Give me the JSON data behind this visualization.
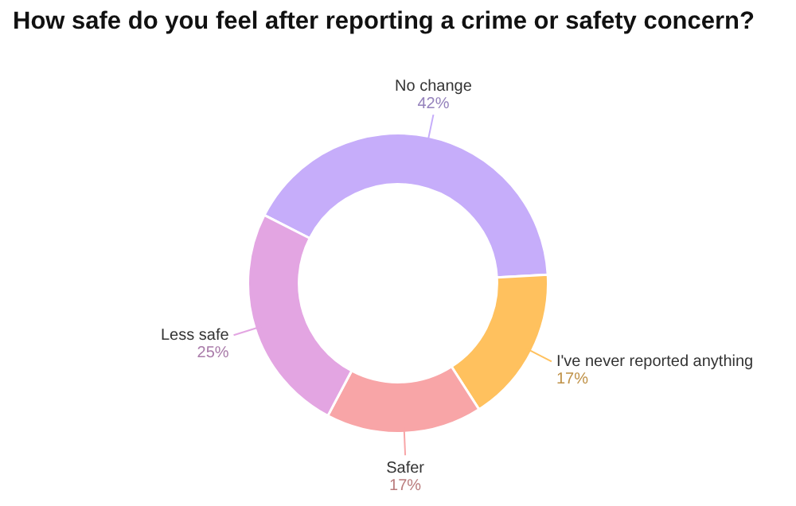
{
  "chart_data": {
    "type": "donut",
    "title": "How safe do you feel after reporting a crime or safety concern?",
    "categories": [
      "No change",
      "I've never reported anything",
      "Safer",
      "Less safe"
    ],
    "values": [
      42,
      17,
      17,
      25
    ],
    "value_labels": [
      "42%",
      "17%",
      "17%",
      "25%"
    ],
    "colors": [
      "#c6adfa",
      "#ffc15e",
      "#f8a5a7",
      "#e3a5e2"
    ],
    "legend": false
  }
}
